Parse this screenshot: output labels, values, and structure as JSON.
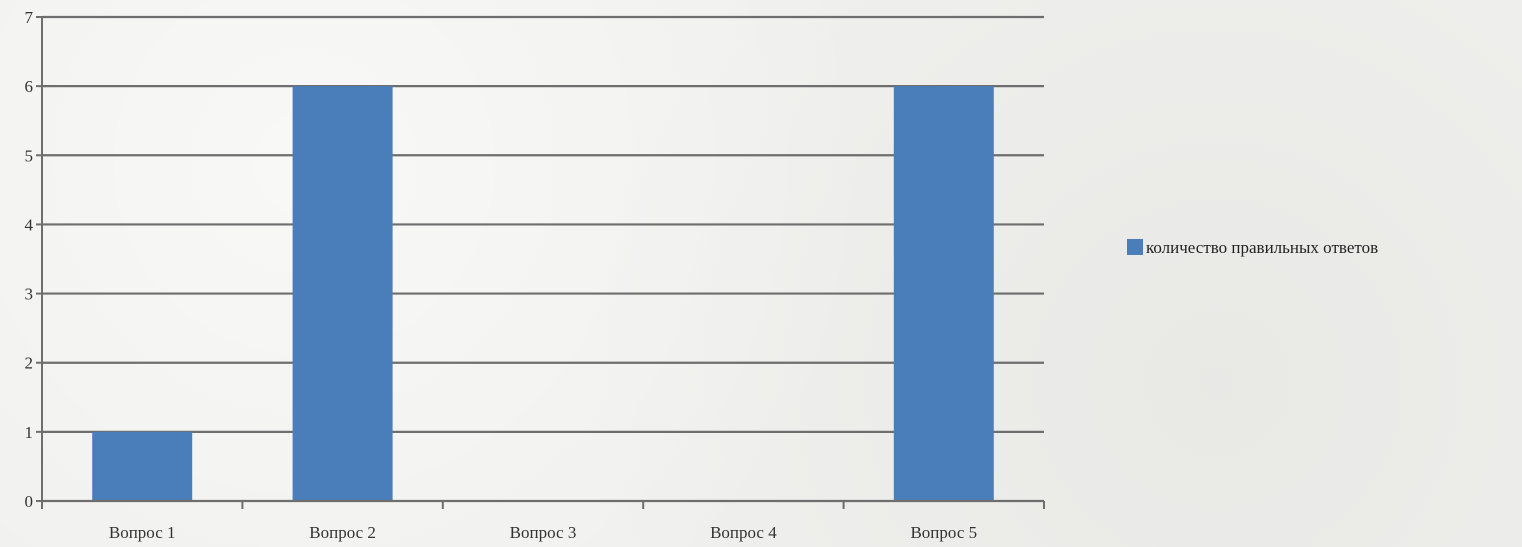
{
  "chart_data": {
    "type": "bar",
    "title": "",
    "xlabel": "",
    "ylabel": "",
    "categories": [
      "Вопрос 1",
      "Вопрос 2",
      "Вопрос 3",
      "Вопрос 4",
      "Вопрос 5"
    ],
    "series": [
      {
        "name": "количество правильных ответов",
        "values": [
          1,
          6,
          0,
          0,
          6
        ],
        "color": "#4a7ebb"
      }
    ],
    "ylim": [
      0,
      7
    ],
    "yticks": [
      0,
      1,
      2,
      3,
      4,
      5,
      6,
      7
    ],
    "grid": true,
    "legend_position": "right"
  }
}
